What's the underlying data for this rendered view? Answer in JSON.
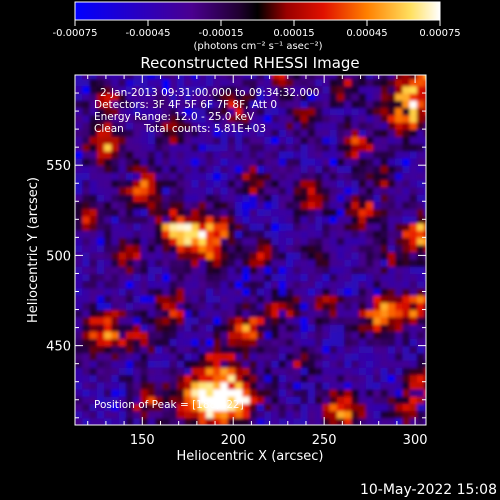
{
  "colorbar": {
    "ticks": [
      "-0.00075",
      "-0.00045",
      "-0.00015",
      "0.00015",
      "0.00045",
      "0.00075"
    ],
    "units": "(photons cm⁻² s⁻¹ asec⁻²)"
  },
  "chart_data": {
    "type": "heatmap",
    "title": "Reconstructed RHESSI Image",
    "xlabel": "Heliocentric X (arcsec)",
    "ylabel": "Heliocentric Y (arcsec)",
    "xlim": [
      113,
      306
    ],
    "ylim": [
      406,
      600
    ],
    "xticks": [
      150,
      200,
      250,
      300
    ],
    "yticks": [
      450,
      500,
      550
    ],
    "colorscale_range": [
      -0.00075,
      0.00075
    ],
    "colormap": "blue-purple-red-orange-yellow-white",
    "annotations": [
      "2-Jan-2013 09:31:00.000 to 09:34:32.000",
      "Detectors: 3F 4F 5F 6F 7F 8F, Att 0",
      "Energy Range: 12.0 - 25.0 keV",
      "Clean",
      "Total counts: 5.81E+03",
      "Position of Peak = [188,422]"
    ],
    "peak": {
      "x": 188,
      "y": 422
    }
  },
  "footer": {
    "timestamp": "10-May-2022 15:08"
  }
}
